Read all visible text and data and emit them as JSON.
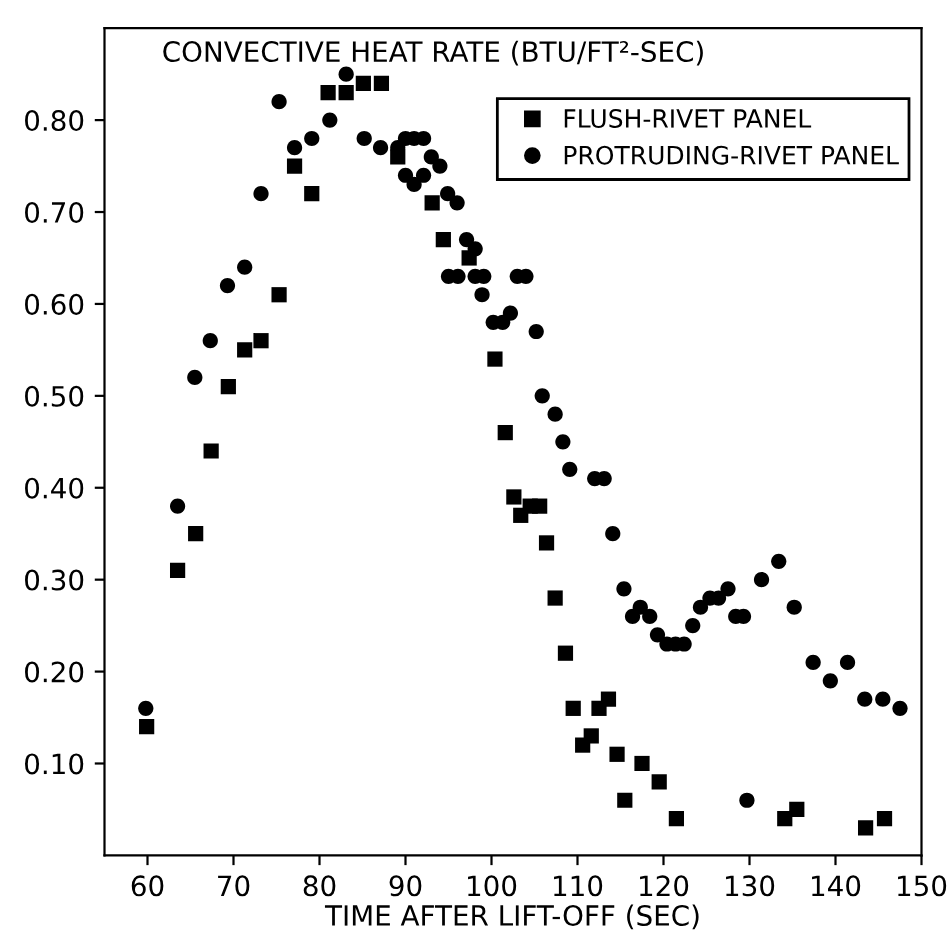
{
  "chart_data": {
    "type": "scatter",
    "ylabel": "CONVECTIVE HEAT RATE (BTU/FT²-SEC)",
    "xlabel": "TIME AFTER LIFT-OFF (SEC)",
    "xlim": [
      55,
      150
    ],
    "ylim": [
      0,
      0.9
    ],
    "xticks": [
      60,
      70,
      80,
      90,
      100,
      110,
      120,
      130,
      140,
      150
    ],
    "yticks": [
      {
        "value": 0.1,
        "label": "0.10"
      },
      {
        "value": 0.2,
        "label": "0.20"
      },
      {
        "value": 0.3,
        "label": "0.30"
      },
      {
        "value": 0.4,
        "label": "0.40"
      },
      {
        "value": 0.5,
        "label": "0.50"
      },
      {
        "value": 0.6,
        "label": "0.60"
      },
      {
        "value": 0.7,
        "label": "0.70"
      },
      {
        "value": 0.8,
        "label": "0.80"
      }
    ],
    "legend": "top right",
    "series": [
      {
        "name": "FLUSH-RIVET PANEL",
        "color": "#000000",
        "marker": "square",
        "x": [
          59.9,
          63.5,
          65.6,
          67.4,
          69.4,
          71.3,
          73.2,
          75.3,
          77.1,
          79.1,
          81.0,
          83.1,
          85.1,
          87.2,
          89.1,
          93.1,
          94.4,
          97.4,
          100.4,
          101.6,
          102.6,
          103.4,
          104.5,
          105.6,
          106.4,
          107.4,
          108.6,
          109.5,
          110.6,
          111.6,
          112.5,
          113.6,
          114.6,
          115.5,
          117.5,
          119.5,
          121.5,
          134.1,
          135.5,
          143.5,
          145.7
        ],
        "values": [
          0.14,
          0.31,
          0.35,
          0.44,
          0.51,
          0.55,
          0.56,
          0.61,
          0.75,
          0.72,
          0.83,
          0.83,
          0.84,
          0.84,
          0.76,
          0.71,
          0.67,
          0.65,
          0.54,
          0.46,
          0.39,
          0.37,
          0.38,
          0.38,
          0.34,
          0.28,
          0.22,
          0.16,
          0.12,
          0.13,
          0.16,
          0.17,
          0.11,
          0.06,
          0.1,
          0.08,
          0.04,
          0.04,
          0.05,
          0.03,
          0.04
        ]
      },
      {
        "name": "PROTRUDING-RIVET PANEL",
        "color": "#000000",
        "marker": "circle",
        "x": [
          59.8,
          63.5,
          65.5,
          67.3,
          69.3,
          71.3,
          73.2,
          75.3,
          77.1,
          79.1,
          81.2,
          83.1,
          85.2,
          87.1,
          89.1,
          90.0,
          91.0,
          92.1,
          93.0,
          90.0,
          91.0,
          92.1,
          94.0,
          94.9,
          96.0,
          97.1,
          98.1,
          95.0,
          96.1,
          98.1,
          99.1,
          98.9,
          100.2,
          101.3,
          102.2,
          103.0,
          104.0,
          105.2,
          105.9,
          107.4,
          108.3,
          109.1,
          112.0,
          113.1,
          114.1,
          115.4,
          116.4,
          117.3,
          118.4,
          119.3,
          120.4,
          121.4,
          122.4,
          123.4,
          124.3,
          125.4,
          126.4,
          127.5,
          128.4,
          129.3,
          129.7,
          131.4,
          133.4,
          135.2,
          137.4,
          139.4,
          141.4,
          143.4,
          145.5,
          147.5
        ],
        "values": [
          0.16,
          0.38,
          0.52,
          0.56,
          0.62,
          0.64,
          0.72,
          0.82,
          0.77,
          0.78,
          0.8,
          0.85,
          0.78,
          0.77,
          0.77,
          0.78,
          0.78,
          0.78,
          0.76,
          0.74,
          0.73,
          0.74,
          0.75,
          0.72,
          0.71,
          0.67,
          0.66,
          0.63,
          0.63,
          0.63,
          0.63,
          0.61,
          0.58,
          0.58,
          0.59,
          0.63,
          0.63,
          0.57,
          0.5,
          0.48,
          0.45,
          0.42,
          0.41,
          0.41,
          0.35,
          0.29,
          0.26,
          0.27,
          0.26,
          0.24,
          0.23,
          0.23,
          0.23,
          0.25,
          0.27,
          0.28,
          0.28,
          0.29,
          0.26,
          0.26,
          0.06,
          0.3,
          0.32,
          0.27,
          0.21,
          0.19,
          0.21,
          0.17,
          0.17,
          0.16
        ]
      }
    ]
  }
}
